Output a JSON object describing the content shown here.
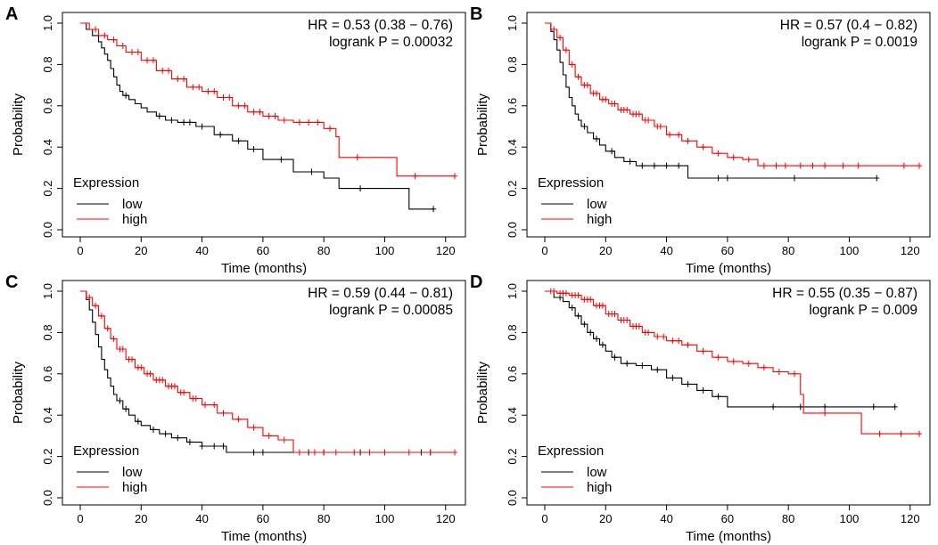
{
  "chart_data": [
    {
      "panel": "A",
      "type": "line",
      "title": "",
      "xlabel": "Time (months)",
      "ylabel": "Probability",
      "xlim": [
        0,
        123
      ],
      "ylim": [
        0,
        1
      ],
      "xticks": [
        "0",
        "20",
        "40",
        "60",
        "80",
        "100",
        "120"
      ],
      "yticks": [
        "0.0",
        "0.2",
        "0.4",
        "0.6",
        "0.8",
        "1.0"
      ],
      "stats": {
        "hr": "HR = 0.53 (0.38 − 0.76)",
        "logrank": "logrank P = 0.00032"
      },
      "legend": {
        "title": "Expression",
        "low": "low",
        "high": "high",
        "placement": "bottom-left"
      },
      "series": [
        {
          "name": "low",
          "color": "#000000",
          "x": [
            0,
            2,
            4,
            6,
            7,
            8,
            9,
            10,
            11,
            12,
            13,
            14,
            16,
            18,
            20,
            22,
            25,
            28,
            32,
            38,
            44,
            50,
            55,
            60,
            70,
            80,
            85,
            108,
            116
          ],
          "y": [
            1.0,
            0.97,
            0.94,
            0.91,
            0.88,
            0.85,
            0.82,
            0.78,
            0.74,
            0.7,
            0.67,
            0.65,
            0.63,
            0.61,
            0.59,
            0.57,
            0.55,
            0.53,
            0.52,
            0.5,
            0.46,
            0.43,
            0.39,
            0.34,
            0.28,
            0.25,
            0.2,
            0.1,
            0.1
          ],
          "censor": [
            15,
            26,
            30,
            34,
            36,
            40,
            46,
            52,
            57,
            66,
            76,
            92,
            116
          ]
        },
        {
          "name": "high",
          "color": "#ff0000",
          "x": [
            0,
            3,
            6,
            9,
            12,
            15,
            20,
            25,
            30,
            35,
            40,
            45,
            50,
            55,
            60,
            65,
            70,
            80,
            84,
            85,
            104,
            123
          ],
          "y": [
            1.0,
            0.97,
            0.94,
            0.92,
            0.89,
            0.86,
            0.82,
            0.77,
            0.73,
            0.69,
            0.67,
            0.64,
            0.6,
            0.57,
            0.55,
            0.53,
            0.52,
            0.49,
            0.45,
            0.35,
            0.26,
            0.26
          ],
          "censor": [
            5,
            8,
            11,
            14,
            17,
            19,
            22,
            24,
            27,
            29,
            32,
            34,
            37,
            39,
            42,
            44,
            47,
            49,
            52,
            54,
            57,
            59,
            62,
            64,
            67,
            72,
            75,
            78,
            82,
            91,
            110,
            123
          ]
        }
      ]
    },
    {
      "panel": "B",
      "type": "line",
      "title": "",
      "xlabel": "Time (months)",
      "ylabel": "Probability",
      "xlim": [
        0,
        123
      ],
      "ylim": [
        0,
        1
      ],
      "xticks": [
        "0",
        "20",
        "40",
        "60",
        "80",
        "100",
        "120"
      ],
      "yticks": [
        "0.0",
        "0.2",
        "0.4",
        "0.6",
        "0.8",
        "1.0"
      ],
      "stats": {
        "hr": "HR = 0.57 (0.4 − 0.82)",
        "logrank": "logrank P = 0.0019"
      },
      "legend": {
        "title": "Expression",
        "low": "low",
        "high": "high",
        "placement": "bottom-left"
      },
      "series": [
        {
          "name": "low",
          "color": "#000000",
          "x": [
            0,
            2,
            3,
            4,
            5,
            6,
            7,
            8,
            9,
            10,
            11,
            12,
            14,
            16,
            18,
            20,
            23,
            26,
            30,
            40,
            47,
            60,
            109
          ],
          "y": [
            1.0,
            0.96,
            0.92,
            0.87,
            0.81,
            0.75,
            0.69,
            0.64,
            0.6,
            0.56,
            0.53,
            0.5,
            0.47,
            0.44,
            0.41,
            0.38,
            0.35,
            0.33,
            0.31,
            0.31,
            0.25,
            0.25,
            0.25
          ],
          "censor": [
            13,
            17,
            22,
            28,
            32,
            36,
            40,
            44,
            57,
            60,
            82,
            109
          ]
        },
        {
          "name": "high",
          "color": "#ff0000",
          "x": [
            0,
            2,
            4,
            6,
            8,
            10,
            12,
            15,
            18,
            21,
            24,
            28,
            32,
            36,
            40,
            45,
            50,
            55,
            60,
            65,
            70,
            80,
            123
          ],
          "y": [
            1.0,
            0.97,
            0.93,
            0.87,
            0.8,
            0.74,
            0.7,
            0.66,
            0.63,
            0.61,
            0.58,
            0.56,
            0.53,
            0.5,
            0.46,
            0.43,
            0.4,
            0.37,
            0.35,
            0.34,
            0.31,
            0.31,
            0.31
          ],
          "censor": [
            3,
            5,
            7,
            9,
            11,
            13,
            14,
            16,
            17,
            19,
            20,
            22,
            23,
            25,
            26,
            27,
            29,
            30,
            31,
            33,
            34,
            37,
            38,
            41,
            44,
            47,
            52,
            57,
            62,
            67,
            72,
            76,
            79,
            84,
            88,
            92,
            98,
            103,
            118,
            123
          ]
        }
      ]
    },
    {
      "panel": "C",
      "type": "line",
      "title": "",
      "xlabel": "Time (months)",
      "ylabel": "Probability",
      "xlim": [
        0,
        123
      ],
      "ylim": [
        0,
        1
      ],
      "xticks": [
        "0",
        "20",
        "40",
        "60",
        "80",
        "100",
        "120"
      ],
      "yticks": [
        "0.0",
        "0.2",
        "0.4",
        "0.6",
        "0.8",
        "1.0"
      ],
      "stats": {
        "hr": "HR = 0.59 (0.44 − 0.81)",
        "logrank": "logrank P = 0.00085"
      },
      "legend": {
        "title": "Expression",
        "low": "low",
        "high": "high",
        "placement": "bottom-left"
      },
      "series": [
        {
          "name": "low",
          "color": "#000000",
          "x": [
            0,
            2,
            3,
            4,
            5,
            6,
            7,
            8,
            9,
            10,
            11,
            12,
            14,
            16,
            18,
            20,
            23,
            26,
            30,
            35,
            40,
            48,
            60,
            115
          ],
          "y": [
            1.0,
            0.96,
            0.91,
            0.85,
            0.79,
            0.73,
            0.67,
            0.62,
            0.58,
            0.54,
            0.5,
            0.47,
            0.43,
            0.4,
            0.37,
            0.35,
            0.33,
            0.31,
            0.29,
            0.27,
            0.25,
            0.22,
            0.22,
            0.22
          ],
          "censor": [
            13,
            15,
            19,
            24,
            28,
            32,
            36,
            40,
            44,
            47,
            57,
            60,
            75,
            80,
            92,
            112,
            115
          ]
        },
        {
          "name": "high",
          "color": "#ff0000",
          "x": [
            0,
            2,
            4,
            6,
            8,
            10,
            12,
            15,
            18,
            21,
            24,
            28,
            32,
            36,
            40,
            45,
            50,
            55,
            60,
            65,
            70,
            80,
            123
          ],
          "y": [
            1.0,
            0.97,
            0.93,
            0.88,
            0.82,
            0.77,
            0.72,
            0.67,
            0.63,
            0.6,
            0.57,
            0.54,
            0.51,
            0.48,
            0.45,
            0.41,
            0.38,
            0.34,
            0.3,
            0.28,
            0.22,
            0.22,
            0.22
          ],
          "censor": [
            3,
            5,
            7,
            9,
            11,
            13,
            14,
            16,
            17,
            19,
            20,
            22,
            23,
            25,
            26,
            27,
            29,
            30,
            31,
            33,
            34,
            37,
            38,
            41,
            44,
            47,
            52,
            57,
            62,
            67,
            72,
            77,
            80,
            84,
            90,
            95,
            100,
            108,
            115,
            123
          ]
        }
      ]
    },
    {
      "panel": "D",
      "type": "line",
      "title": "",
      "xlabel": "Time (months)",
      "ylabel": "Probability",
      "xlim": [
        0,
        123
      ],
      "ylim": [
        0,
        1
      ],
      "xticks": [
        "0",
        "20",
        "40",
        "60",
        "80",
        "100",
        "120"
      ],
      "yticks": [
        "0.0",
        "0.2",
        "0.4",
        "0.6",
        "0.8",
        "1.0"
      ],
      "stats": {
        "hr": "HR = 0.55 (0.35 − 0.87)",
        "logrank": "logrank P = 0.009"
      },
      "legend": {
        "title": "Expression",
        "low": "low",
        "high": "high",
        "placement": "bottom-left"
      },
      "series": [
        {
          "name": "low",
          "color": "#000000",
          "x": [
            0,
            3,
            6,
            8,
            10,
            12,
            14,
            16,
            18,
            20,
            22,
            25,
            30,
            35,
            40,
            45,
            50,
            55,
            60,
            115
          ],
          "y": [
            1.0,
            0.97,
            0.95,
            0.92,
            0.88,
            0.84,
            0.8,
            0.77,
            0.74,
            0.71,
            0.68,
            0.65,
            0.64,
            0.62,
            0.58,
            0.55,
            0.52,
            0.49,
            0.44,
            0.44
          ],
          "censor": [
            5,
            9,
            11,
            13,
            15,
            17,
            19,
            23,
            27,
            32,
            37,
            42,
            47,
            52,
            57,
            75,
            84,
            92,
            108,
            115
          ]
        },
        {
          "name": "high",
          "color": "#ff0000",
          "x": [
            0,
            4,
            8,
            12,
            16,
            20,
            24,
            28,
            32,
            36,
            40,
            45,
            50,
            55,
            60,
            65,
            70,
            75,
            80,
            84,
            85,
            104,
            123
          ],
          "y": [
            1.0,
            0.99,
            0.98,
            0.96,
            0.93,
            0.89,
            0.86,
            0.83,
            0.8,
            0.78,
            0.76,
            0.74,
            0.71,
            0.68,
            0.66,
            0.65,
            0.63,
            0.61,
            0.6,
            0.5,
            0.41,
            0.31,
            0.31
          ],
          "censor": [
            2,
            3,
            5,
            6,
            7,
            9,
            10,
            11,
            13,
            14,
            15,
            17,
            18,
            19,
            21,
            22,
            23,
            25,
            26,
            27,
            29,
            30,
            31,
            33,
            34,
            37,
            39,
            42,
            44,
            47,
            52,
            57,
            62,
            67,
            72,
            77,
            82,
            92,
            110,
            117,
            123
          ]
        }
      ]
    }
  ]
}
